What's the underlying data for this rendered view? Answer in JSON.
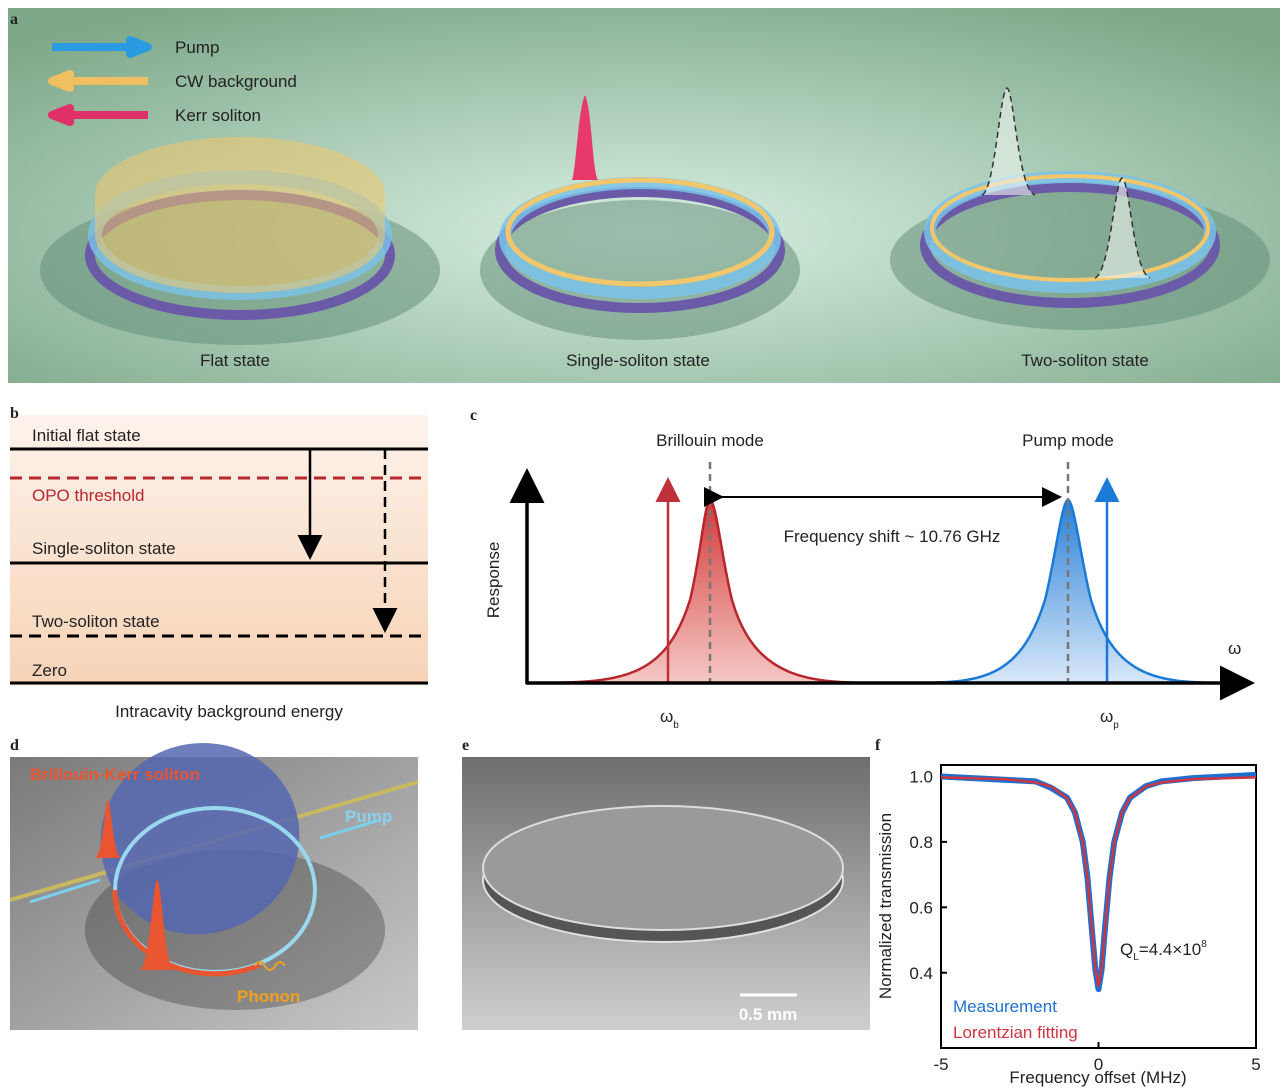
{
  "figure": {
    "a": {
      "label": "a",
      "legend": [
        {
          "text": "Pump",
          "color": "#2a9be0"
        },
        {
          "text": "CW background",
          "color": "#f0c060"
        },
        {
          "text": "Kerr soliton",
          "color": "#e0306a"
        }
      ],
      "captions": [
        "Flat state",
        "Single-soliton state",
        "Two-soliton state"
      ]
    },
    "b": {
      "label": "b",
      "levels": [
        "Initial flat state",
        "OPO threshold",
        "Single-soliton state",
        "Two-soliton state",
        "Zero"
      ],
      "xlabel": "Intracavity background energy"
    },
    "c": {
      "label": "c",
      "modes": [
        "Brillouin mode",
        "Pump mode"
      ],
      "shift": "Frequency shift ~ 10.76 GHz",
      "ylabel": "Response",
      "xlabel": "ω",
      "ticks": [
        {
          "symbol": "ω",
          "sub": "b"
        },
        {
          "symbol": "ω",
          "sub": "p"
        }
      ]
    },
    "d": {
      "label": "d",
      "texts": [
        "Brillouin-Kerr soliton",
        "Pump",
        "Phonon"
      ]
    },
    "e": {
      "label": "e",
      "scalebar": "0.5 mm"
    }
  },
  "chart_data": {
    "type": "line",
    "label": "f",
    "x": [
      -5,
      -3,
      -2,
      -1.5,
      -1,
      -0.75,
      -0.5,
      -0.35,
      -0.2,
      -0.1,
      0,
      0.1,
      0.2,
      0.35,
      0.5,
      0.75,
      1,
      1.5,
      2,
      3,
      5
    ],
    "series": [
      {
        "name": "Measurement",
        "color": "#1f6fd0",
        "values": [
          1.0,
          0.99,
          0.985,
          0.965,
          0.935,
          0.89,
          0.8,
          0.69,
          0.52,
          0.41,
          0.35,
          0.41,
          0.53,
          0.69,
          0.8,
          0.89,
          0.935,
          0.97,
          0.985,
          0.995,
          1.005
        ]
      },
      {
        "name": "Lorentzian fitting",
        "color": "#d0353f",
        "values": [
          0.997,
          0.992,
          0.982,
          0.969,
          0.934,
          0.891,
          0.797,
          0.689,
          0.525,
          0.411,
          0.36,
          0.411,
          0.525,
          0.689,
          0.797,
          0.891,
          0.934,
          0.969,
          0.982,
          0.992,
          0.997
        ]
      }
    ],
    "annotation": {
      "symbol": "Q",
      "sub": "L",
      "text": "=4.4×10",
      "sup": "8"
    },
    "xlabel": "Frequency offset (MHz)",
    "ylabel": "Normalized transmission",
    "xlim": [
      -5,
      5
    ],
    "xticks": [
      -5,
      0,
      5
    ],
    "ylim": [
      0.17,
      1.035
    ],
    "yticks": [
      0.4,
      0.6,
      0.8,
      {
        "value": 1,
        "label": "1.0"
      }
    ]
  }
}
